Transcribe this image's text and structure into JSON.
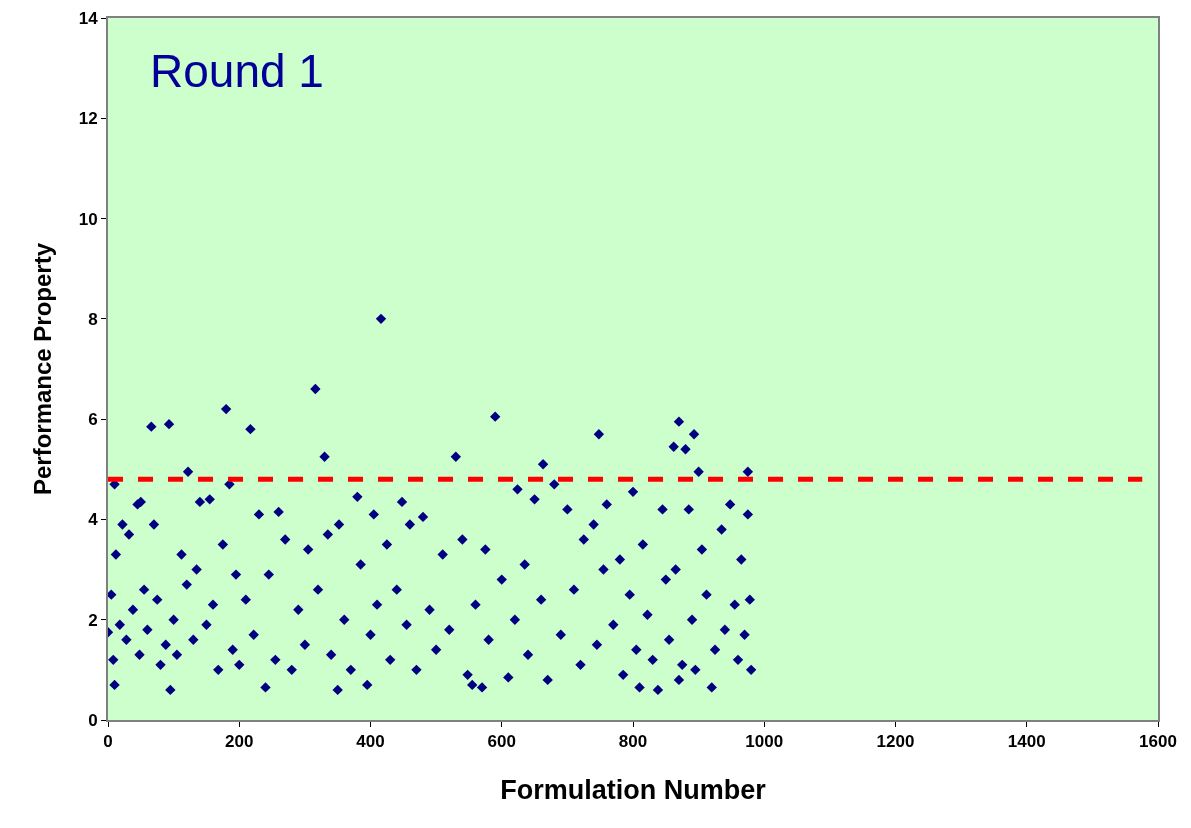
{
  "chart_data": {
    "type": "scatter",
    "title": "Round 1",
    "xlabel": "Formulation Number",
    "ylabel": "Performance Property",
    "xlim": [
      0,
      1600
    ],
    "xticks": [
      0,
      200,
      400,
      600,
      800,
      1000,
      1200,
      1400,
      1600
    ],
    "ylim": [
      0,
      14
    ],
    "yticks": [
      0,
      2,
      4,
      6,
      8,
      10,
      12,
      14
    ],
    "grid": false,
    "marker": "diamond",
    "color": "#000080",
    "x": [
      416,
      316,
      180,
      93,
      66,
      217,
      590,
      870,
      893,
      748,
      862,
      880,
      663,
      530,
      330,
      122,
      900,
      975,
      10,
      185,
      624,
      800,
      380,
      448,
      50,
      140,
      10,
      95,
      240,
      350,
      395,
      570,
      555,
      810,
      838,
      920,
      870,
      0,
      5,
      8,
      12,
      18,
      22,
      28,
      32,
      38,
      45,
      48,
      55,
      60,
      70,
      75,
      80,
      88,
      100,
      105,
      112,
      120,
      130,
      135,
      150,
      155,
      160,
      168,
      175,
      190,
      195,
      200,
      210,
      222,
      230,
      245,
      255,
      260,
      270,
      280,
      290,
      300,
      305,
      320,
      335,
      340,
      352,
      360,
      370,
      385,
      400,
      405,
      410,
      425,
      430,
      440,
      455,
      460,
      470,
      480,
      490,
      500,
      510,
      520,
      540,
      548,
      560,
      575,
      580,
      600,
      610,
      620,
      635,
      640,
      650,
      660,
      670,
      680,
      690,
      700,
      710,
      720,
      725,
      740,
      745,
      755,
      760,
      770,
      780,
      785,
      795,
      805,
      815,
      822,
      830,
      845,
      850,
      855,
      865,
      875,
      885,
      890,
      895,
      905,
      912,
      925,
      935,
      940,
      948,
      955,
      960,
      965,
      970,
      975,
      978,
      980
    ],
    "values": [
      8.0,
      6.6,
      6.2,
      5.9,
      5.85,
      5.8,
      6.05,
      5.95,
      5.7,
      5.7,
      5.45,
      5.4,
      5.1,
      5.25,
      5.25,
      4.95,
      4.95,
      4.95,
      4.7,
      4.7,
      4.6,
      4.55,
      4.45,
      4.35,
      4.35,
      4.35,
      0.7,
      0.6,
      0.65,
      0.6,
      0.7,
      0.65,
      0.7,
      0.65,
      0.6,
      0.65,
      0.8,
      1.75,
      2.5,
      1.2,
      3.3,
      1.9,
      3.9,
      1.6,
      3.7,
      2.2,
      4.3,
      1.3,
      2.6,
      1.8,
      3.9,
      2.4,
      1.1,
      1.5,
      2.0,
      1.3,
      3.3,
      2.7,
      1.6,
      3.0,
      1.9,
      4.4,
      2.3,
      1.0,
      3.5,
      1.4,
      2.9,
      1.1,
      2.4,
      1.7,
      4.1,
      2.9,
      1.2,
      4.15,
      3.6,
      1.0,
      2.2,
      1.5,
      3.4,
      2.6,
      3.7,
      1.3,
      3.9,
      2.0,
      1.0,
      3.1,
      1.7,
      4.1,
      2.3,
      3.5,
      1.2,
      2.6,
      1.9,
      3.9,
      1.0,
      4.05,
      2.2,
      1.4,
      3.3,
      1.8,
      3.6,
      0.9,
      2.3,
      3.4,
      1.6,
      2.8,
      0.85,
      2.0,
      3.1,
      1.3,
      4.4,
      2.4,
      0.8,
      4.7,
      1.7,
      4.2,
      2.6,
      1.1,
      3.6,
      3.9,
      1.5,
      3.0,
      4.3,
      1.9,
      3.2,
      0.9,
      2.5,
      1.4,
      3.5,
      2.1,
      1.2,
      4.2,
      2.8,
      1.6,
      3.0,
      1.1,
      4.2,
      2.0,
      1.0,
      3.4,
      2.5,
      1.4,
      3.8,
      1.8,
      4.3,
      2.3,
      1.2,
      3.2,
      1.7,
      4.1,
      2.4,
      1.0
    ],
    "ref_lines": [
      {
        "axis": "y",
        "value": 4.8,
        "color": "#ff0000",
        "line_style": "dashed"
      }
    ]
  }
}
